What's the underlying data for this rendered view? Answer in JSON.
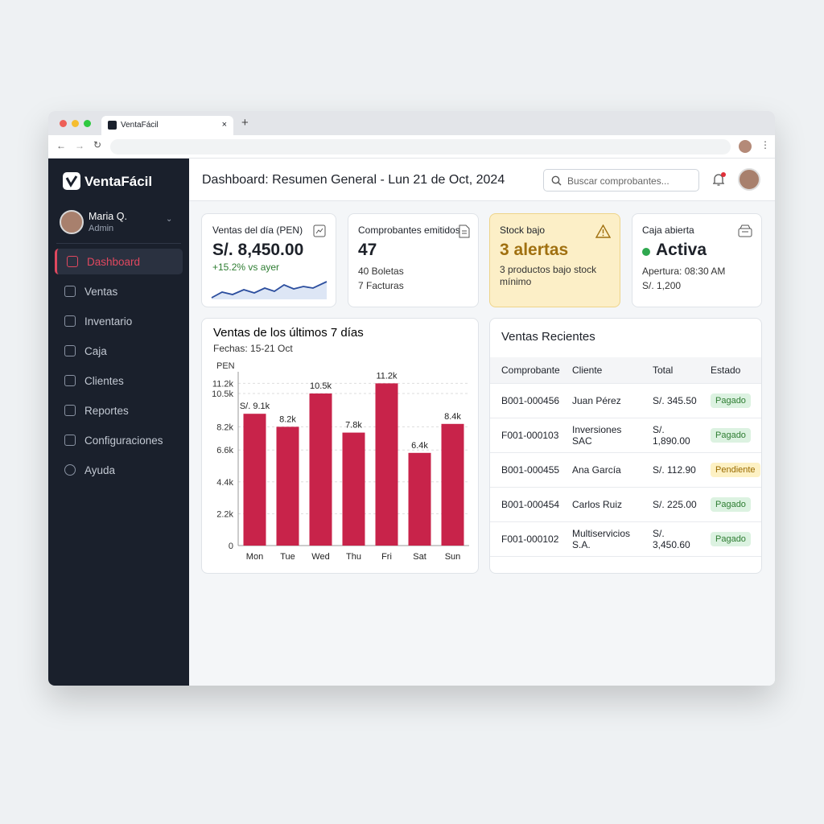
{
  "browser": {
    "tab_title": "VentaFácil"
  },
  "sidebar": {
    "brand": "VentaFácil",
    "user": {
      "name": "Maria Q.",
      "role": "Admin"
    },
    "nav": [
      "Dashboard",
      "Ventas",
      "Inventario",
      "Caja",
      "Clientes",
      "Reportes",
      "Configuraciones",
      "Ayuda"
    ]
  },
  "header": {
    "title": "Dashboard: Resumen General - Lun 21 de Oct, 2024",
    "search_placeholder": "Buscar comprobantes..."
  },
  "cards": [
    {
      "title": "Ventas del día (PEN)",
      "value": "S/. 8,450.00",
      "change": "+15.2% vs ayer"
    },
    {
      "title": "Comprobantes emitidos",
      "value": "47",
      "lines": [
        "40 Boletas",
        "7 Facturas"
      ]
    },
    {
      "title": "Stock bajo",
      "value": "3 alertas",
      "lines": [
        "3 productos bajo stock mínimo"
      ]
    },
    {
      "title": "Caja abierta",
      "value": "Activa",
      "lines": [
        "Apertura: 08:30 AM",
        "S/. 1,200"
      ]
    }
  ],
  "chart_data": {
    "type": "bar",
    "title": "Ventas de los últimos 7 días",
    "subtitle": "Fechas: 15-21 Oct",
    "y_label": "PEN",
    "categories": [
      "Mon",
      "Tue",
      "Wed",
      "Thu",
      "Fri",
      "Sat",
      "Sun"
    ],
    "values": [
      9100,
      8200,
      10500,
      7800,
      11200,
      6400,
      8400
    ],
    "value_labels": [
      "S/. 9.1k",
      "8.2k",
      "10.5k",
      "7.8k",
      "11.2k",
      "6.4k",
      "8.4k"
    ],
    "color": "#c8234a",
    "ylim": [
      0,
      12000
    ],
    "yticks": [
      0,
      {
        "value": 2200,
        "label": "2.2k"
      },
      {
        "value": 4400,
        "label": "4.4k"
      },
      {
        "value": 6600,
        "label": "6.6k"
      },
      {
        "value": 8200,
        "label": "8.2k"
      },
      {
        "value": 10500,
        "label": "10.5k"
      },
      {
        "value": 11200,
        "label": "11.2k"
      }
    ],
    "grid": true
  },
  "recent_sales": {
    "title": "Ventas Recientes",
    "columns": [
      "Comprobante",
      "Cliente",
      "Total",
      "Estado"
    ],
    "rows": [
      [
        "B001-000456",
        "Juan Pérez",
        "S/. 345.50",
        "Pagado"
      ],
      [
        "F001-000103",
        "Inversiones SAC",
        "S/. 1,890.00",
        "Pagado"
      ],
      [
        "B001-000455",
        "Ana García",
        "S/. 112.90",
        "Pendiente"
      ],
      [
        "B001-000454",
        "Carlos Ruiz",
        "S/. 225.00",
        "Pagado"
      ],
      [
        "F001-000102",
        "Multiservicios S.A.",
        "S/. 3,450.60",
        "Pagado"
      ]
    ]
  }
}
